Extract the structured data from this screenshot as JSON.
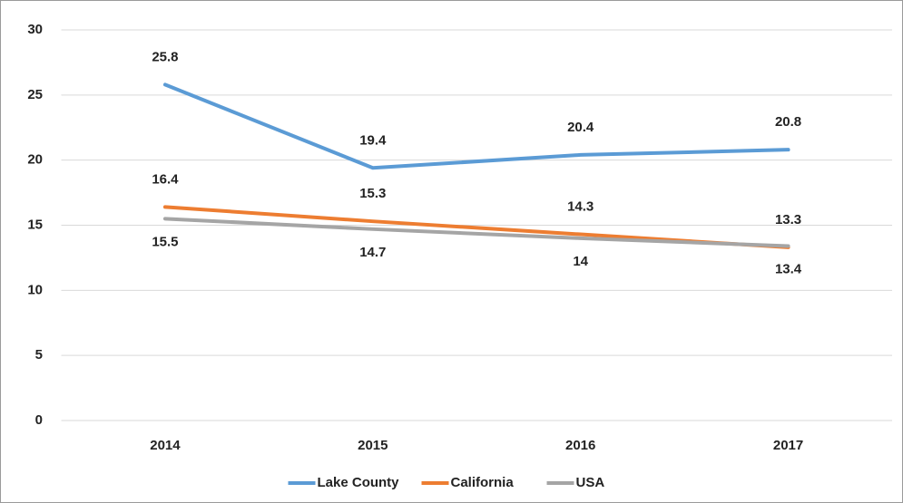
{
  "chart_data": {
    "type": "line",
    "categories": [
      "2014",
      "2015",
      "2016",
      "2017"
    ],
    "series": [
      {
        "name": "Lake County",
        "color": "#5b9bd5",
        "values": [
          25.8,
          19.4,
          20.4,
          20.8
        ]
      },
      {
        "name": "California",
        "color": "#ed7d31",
        "values": [
          16.4,
          15.3,
          14.3,
          13.3
        ]
      },
      {
        "name": "USA",
        "color": "#a5a5a5",
        "values": [
          15.5,
          14.7,
          14,
          13.4
        ]
      }
    ],
    "ylim": [
      0,
      30
    ],
    "yticks": [
      0,
      5,
      10,
      15,
      20,
      25,
      30
    ],
    "grid": true,
    "legend": "bottom"
  }
}
